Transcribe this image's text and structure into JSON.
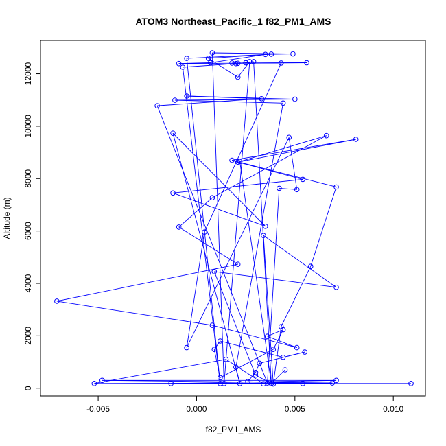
{
  "chart_data": {
    "type": "line",
    "title": "ATOM3 Northeast_Pacific_1 f82_PM1_AMS",
    "xlabel": "f82_PM1_AMS",
    "ylabel": "Altitude (m)",
    "xlim": [
      -0.0072,
      0.0109
    ],
    "ylim": [
      150,
      12800
    ],
    "x_ticks": [
      -0.005,
      0.0,
      0.005,
      0.01
    ],
    "x_tick_labels": [
      "-0.005",
      "0.000",
      "0.005",
      "0.010"
    ],
    "y_ticks": [
      0,
      2000,
      4000,
      6000,
      8000,
      10000,
      12000
    ],
    "y_tick_labels": [
      "0",
      "2000",
      "4000",
      "6000",
      "8000",
      "10000",
      "12000"
    ],
    "series_color": "#0000ff",
    "grid": false,
    "marker": "open-circle",
    "series": [
      {
        "values": [
          [
            0.0109,
            180
          ],
          [
            -0.0013,
            180
          ],
          [
            0.0071,
            300
          ],
          [
            -0.0048,
            300
          ],
          [
            0.0069,
            200
          ],
          [
            -0.0052,
            180
          ],
          [
            0.0015,
            1100
          ],
          [
            0.0034,
            170
          ],
          [
            0.0054,
            180
          ],
          [
            0.0026,
            250
          ],
          [
            0.003,
            600
          ],
          [
            0.0032,
            950
          ],
          [
            0.0055,
            1380
          ],
          [
            0.0044,
            1180
          ],
          [
            0.0012,
            1800
          ],
          [
            0.0009,
            1480
          ],
          [
            0.0012,
            400
          ],
          [
            0.0039,
            1480
          ],
          [
            0.0044,
            2230
          ],
          [
            0.0036,
            1980
          ],
          [
            0.0051,
            1550
          ],
          [
            0.0008,
            2400
          ],
          [
            -0.0071,
            3320
          ],
          [
            0.0021,
            4730
          ],
          [
            -0.0009,
            6150
          ],
          [
            0.0008,
            7270
          ],
          [
            0.0066,
            9640
          ],
          [
            0.0022,
            8650
          ],
          [
            0.0038,
            180
          ],
          [
            0.003,
            500
          ],
          [
            0.0009,
            4450
          ],
          [
            0.0071,
            3850
          ],
          [
            0.0034,
            5830
          ],
          [
            0.0039,
            160
          ],
          [
            0.0043,
            2350
          ],
          [
            0.0058,
            4650
          ],
          [
            0.0071,
            7680
          ],
          [
            0.0018,
            8700
          ],
          [
            0.0081,
            9500
          ],
          [
            0.0021,
            8630
          ],
          [
            0.0054,
            7970
          ],
          [
            -0.0012,
            7450
          ],
          [
            0.0035,
            6180
          ],
          [
            -0.0012,
            9730
          ],
          [
            0.0022,
            180
          ],
          [
            0.002,
            800
          ],
          [
            0.0044,
            10880
          ],
          [
            -0.0011,
            10990
          ],
          [
            0.005,
            11030
          ],
          [
            -0.0005,
            11150
          ],
          [
            0.0033,
            11050
          ],
          [
            -0.002,
            10780
          ],
          [
            0.0036,
            200
          ],
          [
            0.0042,
            7630
          ],
          [
            0.0051,
            7580
          ],
          [
            0.0047,
            9570
          ],
          [
            -0.0005,
            1550
          ],
          [
            0.0004,
            5960
          ],
          [
            0.0043,
            12410
          ],
          [
            0.0021,
            12400
          ],
          [
            0.0018,
            12410
          ],
          [
            0.0056,
            12420
          ],
          [
            -0.0009,
            12390
          ],
          [
            0.0007,
            12420
          ],
          [
            0.0035,
            12740
          ],
          [
            0.0049,
            12760
          ],
          [
            0.0008,
            12800
          ],
          [
            0.0014,
            180
          ],
          [
            0.0027,
            12460
          ],
          [
            0.0021,
            11870
          ],
          [
            0.0006,
            12590
          ],
          [
            0.0038,
            12750
          ],
          [
            -0.0005,
            12590
          ],
          [
            0.0012,
            180
          ],
          [
            -0.0007,
            12250
          ],
          [
            0.002,
            12390
          ],
          [
            0.0025,
            12420
          ],
          [
            0.0029,
            12460
          ],
          [
            0.0038,
            180
          ],
          [
            0.0045,
            700
          ]
        ]
      }
    ]
  }
}
